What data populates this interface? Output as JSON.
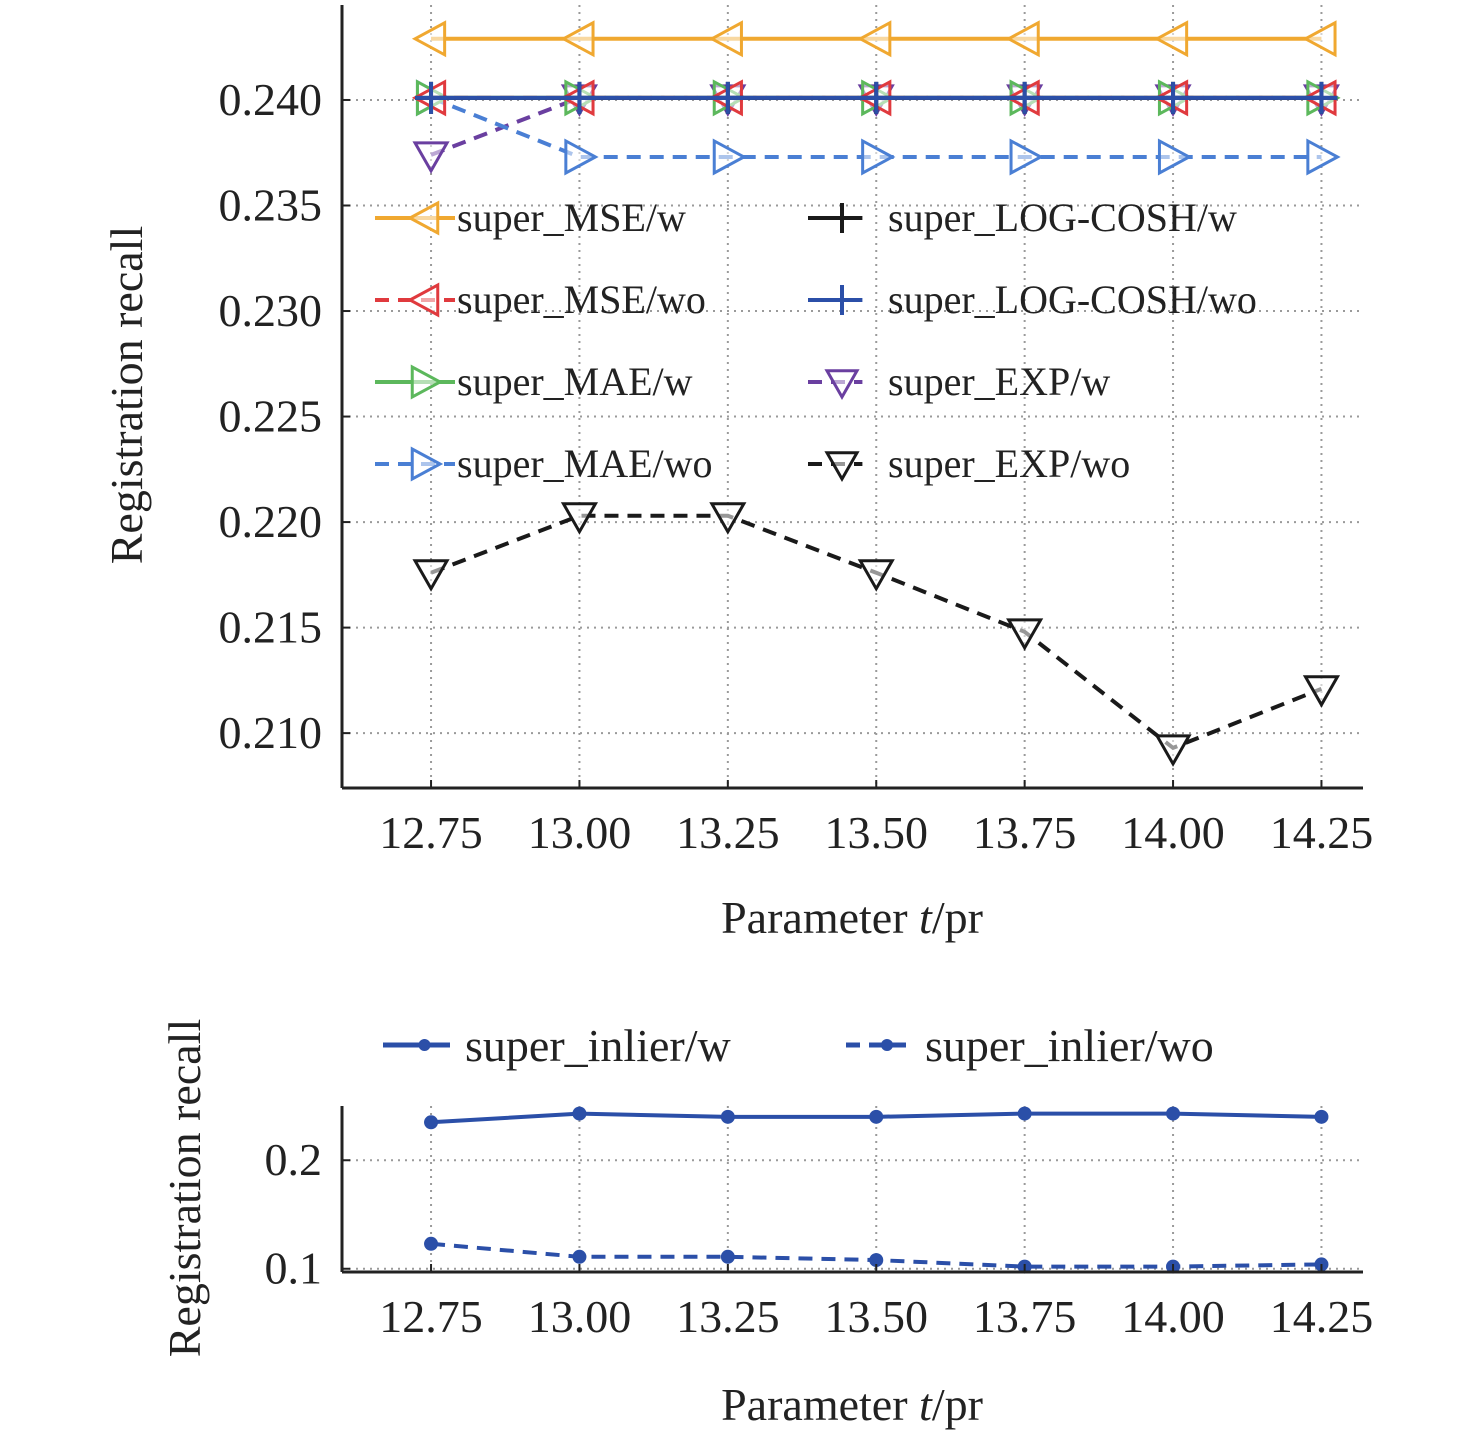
{
  "chart_data": [
    {
      "type": "line",
      "xlabel": "Parameter t/pr",
      "xlabel_parts": {
        "prefix": "Parameter ",
        "italic": "t",
        "suffix": "/pr"
      },
      "ylabel": "Registration recall",
      "x": [
        12.75,
        13.0,
        13.25,
        13.5,
        13.75,
        14.0,
        14.25
      ],
      "x_tick_labels": [
        "12.75",
        "13.00",
        "13.25",
        "13.50",
        "13.75",
        "14.00",
        "14.25"
      ],
      "y_ticks": [
        0.21,
        0.215,
        0.22,
        0.225,
        0.23,
        0.235,
        0.24
      ],
      "y_tick_labels": [
        "0.210",
        "0.215",
        "0.220",
        "0.225",
        "0.230",
        "0.235",
        "0.240"
      ],
      "xlim": [
        12.6,
        14.32
      ],
      "ylim": [
        0.2074,
        0.2445
      ],
      "grid": true,
      "legend": "center, two columns",
      "series": [
        {
          "name": "super_MSE/w",
          "color": "#f0a830",
          "marker": "triangle-left",
          "linestyle": "solid",
          "values": [
            0.2429,
            0.2429,
            0.2429,
            0.2429,
            0.2429,
            0.2429,
            0.2429
          ]
        },
        {
          "name": "super_MSE/wo",
          "color": "#e03a3e",
          "marker": "triangle-left",
          "linestyle": "dashed",
          "values": [
            0.2401,
            0.2401,
            0.2401,
            0.2401,
            0.2401,
            0.2401,
            0.2401
          ]
        },
        {
          "name": "super_MAE/w",
          "color": "#5cb85c",
          "marker": "triangle-right",
          "linestyle": "solid",
          "values": [
            0.2401,
            0.2401,
            0.2401,
            0.2401,
            0.2401,
            0.2401,
            0.2401
          ]
        },
        {
          "name": "super_MAE/wo",
          "color": "#4a7fd4",
          "marker": "triangle-right",
          "linestyle": "dashed",
          "values": [
            0.2401,
            0.2373,
            0.2373,
            0.2373,
            0.2373,
            0.2373,
            0.2373
          ]
        },
        {
          "name": "super_LOG-COSH/w",
          "color": "#1a1a1a",
          "marker": "plus",
          "linestyle": "solid",
          "values": [
            0.2401,
            0.2401,
            0.2401,
            0.2401,
            0.2401,
            0.2401,
            0.2401
          ]
        },
        {
          "name": "super_LOG-COSH/wo",
          "color": "#2b4fa8",
          "marker": "plus",
          "linestyle": "solid",
          "values": [
            0.2401,
            0.2401,
            0.2401,
            0.2401,
            0.2401,
            0.2401,
            0.2401
          ]
        },
        {
          "name": "super_EXP/w",
          "color": "#6a3fa0",
          "marker": "triangle-down",
          "linestyle": "dashed",
          "values": [
            0.2374,
            0.2401,
            0.2401,
            0.2401,
            0.2401,
            0.2401,
            0.2401
          ]
        },
        {
          "name": "super_EXP/wo",
          "color": "#1a1a1a",
          "marker": "triangle-down",
          "linestyle": "dashed",
          "values": [
            0.2176,
            0.2203,
            0.2203,
            0.2176,
            0.2148,
            0.2093,
            0.2121
          ]
        }
      ]
    },
    {
      "type": "line",
      "xlabel": "Parameter t/pr",
      "xlabel_parts": {
        "prefix": "Parameter ",
        "italic": "t",
        "suffix": "/pr"
      },
      "ylabel": "Registration recall",
      "x": [
        12.75,
        13.0,
        13.25,
        13.5,
        13.75,
        14.0,
        14.25
      ],
      "x_tick_labels": [
        "12.75",
        "13.00",
        "13.25",
        "13.50",
        "13.75",
        "14.00",
        "14.25"
      ],
      "y_ticks": [
        0.1,
        0.2
      ],
      "y_tick_labels": [
        "0.1",
        "0.2"
      ],
      "xlim": [
        12.6,
        14.32
      ],
      "ylim": [
        0.097,
        0.25
      ],
      "grid": true,
      "legend": "top, one row",
      "series": [
        {
          "name": "super_inlier/w",
          "color": "#2b4fa8",
          "marker": "circle",
          "linestyle": "solid",
          "values": [
            0.235,
            0.243,
            0.24,
            0.24,
            0.243,
            0.243,
            0.24
          ]
        },
        {
          "name": "super_inlier/wo",
          "color": "#2b4fa8",
          "marker": "circle",
          "linestyle": "dashed",
          "values": [
            0.123,
            0.111,
            0.111,
            0.108,
            0.102,
            0.102,
            0.104
          ]
        }
      ]
    }
  ]
}
